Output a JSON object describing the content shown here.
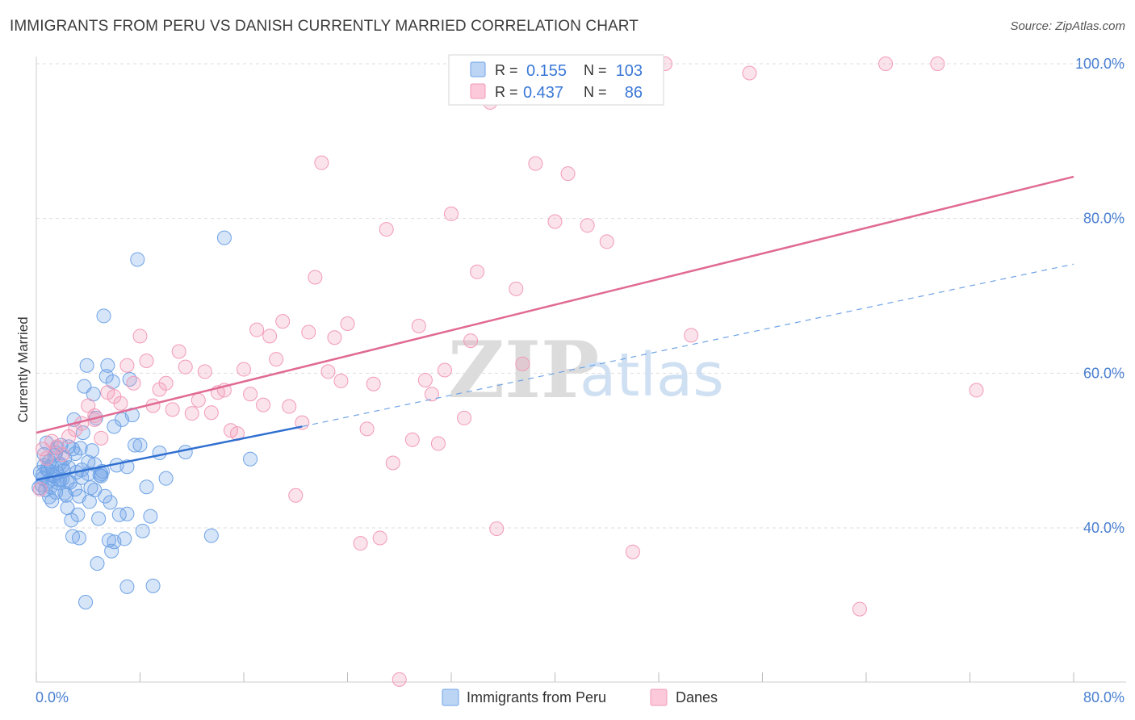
{
  "title": "IMMIGRANTS FROM PERU VS DANISH CURRENTLY MARRIED CORRELATION CHART",
  "source": "Source: ZipAtlas.com",
  "watermark": {
    "zip": "ZIP",
    "atlas": "atlas"
  },
  "legend_stats": {
    "r_label": "R =",
    "n_label": "N =",
    "peru": {
      "r": "0.155",
      "n": "103"
    },
    "danes": {
      "r": "0.437",
      "n": "86"
    }
  },
  "colors": {
    "peru": "#6fa3e6",
    "peru_line": "#2f6fd0",
    "danes": "#f29ab8",
    "danes_line": "#e06a94"
  },
  "chart_data": {
    "type": "scatter",
    "title": "IMMIGRANTS FROM PERU VS DANISH CURRENTLY MARRIED CORRELATION CHART",
    "xlabel": "",
    "ylabel": "Currently Married",
    "xlim": [
      0,
      80
    ],
    "ylim": [
      20,
      102
    ],
    "x_tick_labels": [
      "0.0%",
      "80.0%"
    ],
    "y_ticks": [
      40,
      60,
      80,
      100
    ],
    "y_tick_labels": [
      "40.0%",
      "60.0%",
      "80.0%",
      "100.0%"
    ],
    "grid": true,
    "legend_position": "bottom",
    "series": [
      {
        "name": "Immigrants from Peru",
        "r": 0.155,
        "n": 103,
        "trend": {
          "x": [
            0,
            20.5
          ],
          "y": [
            46.2,
            53.1
          ],
          "dashed_to": [
            80,
            74.1
          ]
        },
        "points": [
          [
            0.3,
            47.2
          ],
          [
            0.4,
            45.6
          ],
          [
            0.5,
            46.4
          ],
          [
            0.6,
            48.1
          ],
          [
            0.7,
            44.9
          ],
          [
            0.8,
            47.6
          ],
          [
            0.9,
            46.0
          ],
          [
            1.0,
            48.6
          ],
          [
            1.1,
            45.3
          ],
          [
            1.2,
            47.9
          ],
          [
            1.3,
            46.8
          ],
          [
            1.4,
            49.4
          ],
          [
            1.5,
            44.6
          ],
          [
            1.6,
            47.1
          ],
          [
            1.7,
            45.8
          ],
          [
            1.8,
            48.3
          ],
          [
            1.9,
            50.7
          ],
          [
            2.0,
            46.3
          ],
          [
            2.1,
            47.4
          ],
          [
            2.2,
            49.0
          ],
          [
            2.3,
            44.2
          ],
          [
            2.4,
            42.6
          ],
          [
            2.5,
            50.5
          ],
          [
            2.6,
            45.9
          ],
          [
            2.7,
            41.0
          ],
          [
            2.8,
            38.9
          ],
          [
            2.9,
            54.0
          ],
          [
            3.0,
            49.6
          ],
          [
            3.1,
            47.2
          ],
          [
            3.2,
            41.7
          ],
          [
            3.3,
            44.1
          ],
          [
            3.4,
            50.3
          ],
          [
            3.5,
            46.5
          ],
          [
            3.6,
            52.3
          ],
          [
            3.7,
            58.3
          ],
          [
            3.8,
            30.4
          ],
          [
            3.9,
            61.0
          ],
          [
            4.0,
            47.0
          ],
          [
            4.1,
            43.4
          ],
          [
            4.2,
            45.2
          ],
          [
            4.3,
            50.0
          ],
          [
            4.4,
            57.3
          ],
          [
            4.5,
            48.2
          ],
          [
            4.6,
            54.2
          ],
          [
            4.7,
            35.4
          ],
          [
            4.8,
            41.2
          ],
          [
            4.9,
            46.8
          ],
          [
            5.0,
            47.0
          ],
          [
            5.1,
            47.3
          ],
          [
            5.2,
            67.4
          ],
          [
            5.3,
            44.1
          ],
          [
            5.4,
            59.6
          ],
          [
            5.5,
            61.0
          ],
          [
            5.6,
            38.4
          ],
          [
            5.7,
            43.3
          ],
          [
            5.8,
            37.0
          ],
          [
            5.9,
            58.9
          ],
          [
            6.0,
            53.1
          ],
          [
            6.2,
            48.1
          ],
          [
            6.4,
            41.7
          ],
          [
            6.6,
            54.0
          ],
          [
            6.8,
            38.6
          ],
          [
            7.0,
            47.9
          ],
          [
            7.2,
            59.2
          ],
          [
            7.4,
            54.6
          ],
          [
            7.6,
            50.7
          ],
          [
            7.8,
            74.7
          ],
          [
            8.0,
            50.7
          ],
          [
            8.2,
            39.6
          ],
          [
            8.5,
            45.3
          ],
          [
            8.8,
            41.5
          ],
          [
            9.0,
            32.5
          ],
          [
            9.5,
            49.7
          ],
          [
            10.0,
            46.4
          ],
          [
            11.5,
            49.8
          ],
          [
            13.5,
            39.0
          ],
          [
            14.5,
            77.5
          ],
          [
            16.5,
            48.9
          ],
          [
            7.0,
            32.4
          ],
          [
            2.0,
            48.0
          ],
          [
            1.5,
            49.7
          ],
          [
            0.8,
            51.0
          ],
          [
            1.2,
            43.5
          ],
          [
            2.5,
            47.8
          ],
          [
            3.0,
            45.0
          ],
          [
            0.5,
            46.9
          ],
          [
            1.8,
            46.2
          ],
          [
            2.2,
            44.5
          ],
          [
            3.5,
            47.5
          ],
          [
            4.0,
            48.5
          ],
          [
            0.2,
            45.2
          ],
          [
            0.6,
            49.5
          ],
          [
            1.0,
            44.0
          ],
          [
            1.4,
            46.6
          ],
          [
            2.8,
            50.2
          ],
          [
            3.3,
            38.7
          ],
          [
            4.5,
            44.9
          ],
          [
            5.0,
            46.7
          ],
          [
            6.0,
            38.2
          ],
          [
            7.0,
            41.8
          ],
          [
            0.9,
            47.5
          ],
          [
            1.6,
            50.3
          ],
          [
            2.4,
            46.0
          ]
        ]
      },
      {
        "name": "Danes",
        "r": 0.437,
        "n": 86,
        "trend": {
          "x": [
            0,
            80
          ],
          "y": [
            52.3,
            85.4
          ]
        },
        "points": [
          [
            0.3,
            45.0
          ],
          [
            0.5,
            50.2
          ],
          [
            0.8,
            49.0
          ],
          [
            1.2,
            51.2
          ],
          [
            1.6,
            50.5
          ],
          [
            2.0,
            49.5
          ],
          [
            2.5,
            51.8
          ],
          [
            3.0,
            52.7
          ],
          [
            3.5,
            53.5
          ],
          [
            4.0,
            55.8
          ],
          [
            4.5,
            54.0
          ],
          [
            5.0,
            51.6
          ],
          [
            5.5,
            57.5
          ],
          [
            6.0,
            57.0
          ],
          [
            6.5,
            56.1
          ],
          [
            7.0,
            61.0
          ],
          [
            7.5,
            58.7
          ],
          [
            8.0,
            64.8
          ],
          [
            8.5,
            61.6
          ],
          [
            9.0,
            55.8
          ],
          [
            9.5,
            57.9
          ],
          [
            10.0,
            58.7
          ],
          [
            10.5,
            55.3
          ],
          [
            11.0,
            62.8
          ],
          [
            11.5,
            60.8
          ],
          [
            12.0,
            54.8
          ],
          [
            12.5,
            56.5
          ],
          [
            13.0,
            60.2
          ],
          [
            13.5,
            54.9
          ],
          [
            14.0,
            57.5
          ],
          [
            14.5,
            57.8
          ],
          [
            15.0,
            52.6
          ],
          [
            15.5,
            52.2
          ],
          [
            16.0,
            60.5
          ],
          [
            16.5,
            57.3
          ],
          [
            17.0,
            65.6
          ],
          [
            17.5,
            55.9
          ],
          [
            18.0,
            64.8
          ],
          [
            18.5,
            61.8
          ],
          [
            19.0,
            66.7
          ],
          [
            19.5,
            55.7
          ],
          [
            20.0,
            44.2
          ],
          [
            20.5,
            53.6
          ],
          [
            21.0,
            65.3
          ],
          [
            21.5,
            72.4
          ],
          [
            22.0,
            87.2
          ],
          [
            22.5,
            60.2
          ],
          [
            23.0,
            64.6
          ],
          [
            23.5,
            59.0
          ],
          [
            24.0,
            66.4
          ],
          [
            25.0,
            38.0
          ],
          [
            25.5,
            52.8
          ],
          [
            26.0,
            58.6
          ],
          [
            26.5,
            38.7
          ],
          [
            27.0,
            78.6
          ],
          [
            27.5,
            48.4
          ],
          [
            28.0,
            20.4
          ],
          [
            29.0,
            51.4
          ],
          [
            29.5,
            66.1
          ],
          [
            30.0,
            59.1
          ],
          [
            30.5,
            57.3
          ],
          [
            31.0,
            50.9
          ],
          [
            31.5,
            60.4
          ],
          [
            32.0,
            80.6
          ],
          [
            33.0,
            54.2
          ],
          [
            33.5,
            64.2
          ],
          [
            34.0,
            73.1
          ],
          [
            35.0,
            95.0
          ],
          [
            35.5,
            39.9
          ],
          [
            37.0,
            70.9
          ],
          [
            37.5,
            61.2
          ],
          [
            38.5,
            87.1
          ],
          [
            40.0,
            79.6
          ],
          [
            41.0,
            85.8
          ],
          [
            42.5,
            79.1
          ],
          [
            44.0,
            77.0
          ],
          [
            45.0,
            100.0
          ],
          [
            46.0,
            36.9
          ],
          [
            48.5,
            100.0
          ],
          [
            50.5,
            64.9
          ],
          [
            55.0,
            98.8
          ],
          [
            63.5,
            29.5
          ],
          [
            65.5,
            100.0
          ],
          [
            69.5,
            100.0
          ],
          [
            72.5,
            57.8
          ],
          [
            4.5,
            54.5
          ]
        ]
      }
    ]
  },
  "bottom_legend": [
    {
      "label": "Immigrants from Peru"
    },
    {
      "label": "Danes"
    }
  ]
}
